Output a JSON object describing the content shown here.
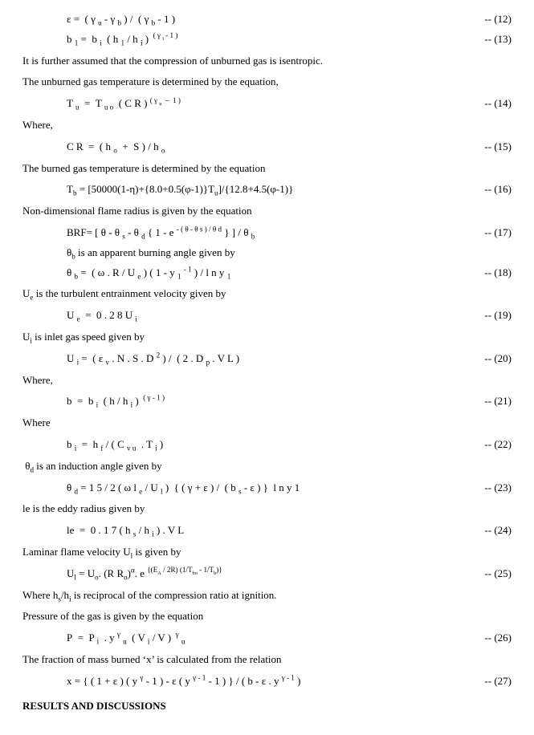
{
  "eq12": {
    "formula": "ε =  ( γ u - γ b ) /  ( γ b - 1 )",
    "num": "-- (12)"
  },
  "eq13": {
    "formula": "b 1 =  b i  ( h 1 / h i )  ( γ i - 1 )",
    "num": "-- (13)"
  },
  "t1": "It is further assumed that the compression of unburned gas is isentropic.",
  "t2": "The unburned gas temperature is determined by the equation,",
  "eq14": {
    "formula": "T u  =  T u o  ( C R ) ( γ u  –  1 )",
    "num": "-- (14)"
  },
  "t3": "Where,",
  "eq15": {
    "formula": "C R  =  ( h o  +  S ) / h o",
    "num": "-- (15)"
  },
  "t4": "The burned gas temperature is determined by the equation",
  "eq16": {
    "formula": "Tb = [50000(1-η)+{8.0+0.5(φ-1)}Tu]/{12.8+4.5(φ-1)}",
    "num": "-- (16)"
  },
  "t5": "Non-dimensional flame radius is given by the equation",
  "eq17": {
    "formula": "BRF= [ θ - θ s - θ d { 1 - e - ( θ - θ s ) / θ d } ] / θ b",
    "num": "-- (17)"
  },
  "t6": "θb is an apparent burning angle given by",
  "eq18": {
    "formula": "θ b =  ( ω . R / U e ) ( 1 - y 1 - 1 ) / l n y 1",
    "num": "-- (18)"
  },
  "t7": "Ue is the turbulent entrainment velocity given by",
  "eq19": {
    "formula": "U e  =  0 . 2 8 U i",
    "num": "-- (19)"
  },
  "t8": "Ui is inlet gas speed given by",
  "eq20": {
    "formula": "U i =  ( ε v . N . S . D 2 ) /  ( 2 . D p . V L )",
    "num": "-- (20)"
  },
  "t9": "Where,",
  "eq21": {
    "formula": "b  =  b i  ( h / h i )  ( γ - 1 )",
    "num": "-- (21)"
  },
  "t10": "Where",
  "eq22": {
    "formula": "b i  =  h f / ( C v u  . T i )",
    "num": "-- (22)"
  },
  "t11": " θd is an induction angle given by",
  "eq23": {
    "formula": "θ d = 1 5 / 2 ( ω l e / U l )  { ( γ + ε ) /  ( b s - ε ) }  l n y 1",
    "num": "-- (23)"
  },
  "t12": "le is the eddy radius given by",
  "eq24": {
    "formula": "le  =  0 . 1 7 ( h s / h i ) . V L",
    "num": "-- (24)"
  },
  "t13": "Laminar flame velocity Ul is given by",
  "eq25": {
    "formula": "Ul = Uo. (R Ro)α. e {(EA / 2R) (1/Tbo - 1/Tb)}",
    "num": "-- (25)"
  },
  "t14": "Where hs/hi is reciprocal of the compression ratio at ignition.",
  "t15": "Pressure of the gas is given by the equation",
  "eq26": {
    "formula": "P  =  P i  . y γ u  ( V i / V )  γ u",
    "num": "-- (26)"
  },
  "t16": "The fraction of mass burned ‘x’ is calculated from the relation",
  "eq27": {
    "formula": "x = { ( 1 + ε ) ( y γ - 1 ) - ε ( y γ - 1 - 1 ) } / ( b - ε . y γ - 1 )",
    "num": "-- (27)"
  },
  "heading": "RESULTS AND DISCUSSIONS"
}
